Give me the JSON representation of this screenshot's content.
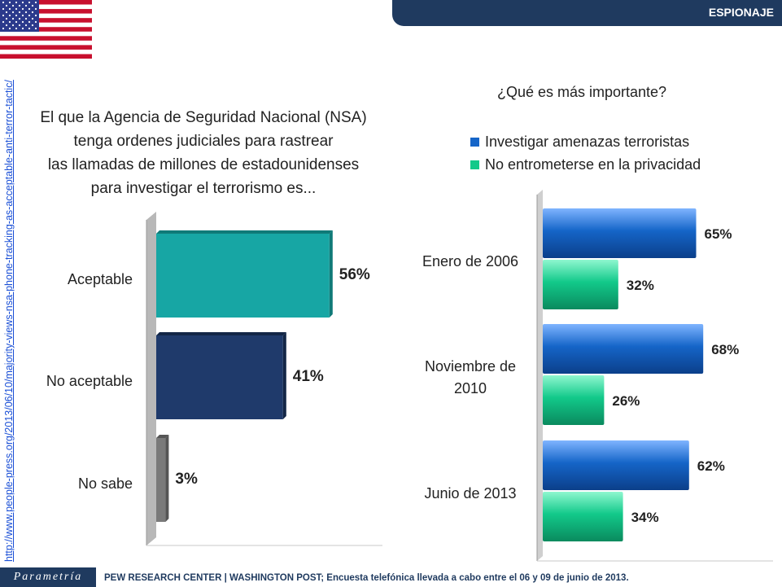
{
  "header": {
    "title": "ESPIONAJE"
  },
  "source_url": "http://www.people-press.org/2013/06/10/majority-views-nsa-phone-tracking-as-acceptable-anti-terror-tactic/",
  "footer": {
    "logo": "Parametría",
    "text": "PEW RESEARCH CENTER | WASHINGTON POST; Encuesta telefónica llevada a cabo entre el 06 y 09 de junio de 2013."
  },
  "colors": {
    "header": "#1f3a5f",
    "acceptable": "#17a6a4",
    "not_acceptable": "#1f3a6b",
    "dont_know": "#7a7a7a",
    "investigate": "#1565c8",
    "privacy": "#12c98a"
  },
  "chart_data": [
    {
      "type": "bar",
      "orientation": "horizontal",
      "title_lines": [
        "El que la Agencia de Seguridad Nacional (NSA)",
        "tenga ordenes judiciales para rastrear",
        "las llamadas de millones de estadounidenses",
        "para investigar el terrorismo es..."
      ],
      "categories": [
        "Aceptable",
        "No aceptable",
        "No sabe"
      ],
      "values": [
        56,
        41,
        3
      ],
      "labels": [
        "56%",
        "41%",
        "3%"
      ],
      "xlim": [
        0,
        100
      ]
    },
    {
      "type": "bar",
      "orientation": "horizontal",
      "title": "¿Qué es más importante?",
      "categories": [
        "Enero de 2006",
        "Noviembre de 2010",
        "Junio de 2013"
      ],
      "series": [
        {
          "name": "Investigar amenazas terroristas",
          "values": [
            65,
            68,
            62
          ],
          "labels": [
            "65%",
            "68%",
            "62%"
          ]
        },
        {
          "name": "No entrometerse en la privacidad",
          "values": [
            32,
            26,
            34
          ],
          "labels": [
            "32%",
            "26%",
            "34%"
          ]
        }
      ],
      "xlim": [
        0,
        100
      ],
      "legend": "top"
    }
  ]
}
